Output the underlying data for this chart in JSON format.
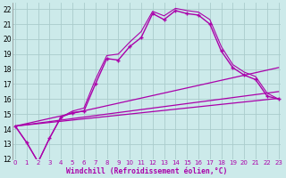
{
  "xlabel": "Windchill (Refroidissement éolien,°C)",
  "background_color": "#cceaea",
  "grid_color": "#aacccc",
  "line_color": "#aa00aa",
  "ylim": [
    12,
    22.4
  ],
  "xlim": [
    -0.2,
    23.2
  ],
  "yticks": [
    12,
    13,
    14,
    15,
    16,
    17,
    18,
    19,
    20,
    21,
    22
  ],
  "xticks": [
    0,
    1,
    2,
    3,
    4,
    5,
    6,
    7,
    8,
    9,
    10,
    11,
    12,
    13,
    14,
    15,
    16,
    17,
    18,
    19,
    20,
    21,
    22,
    23
  ],
  "main_x": [
    0,
    1,
    2,
    3,
    4,
    5,
    6,
    7,
    8,
    9,
    10,
    11,
    12,
    13,
    14,
    15,
    16,
    17,
    18,
    19,
    20,
    21,
    22,
    23
  ],
  "main_y": [
    14.2,
    13.1,
    11.8,
    13.4,
    14.8,
    15.1,
    15.2,
    17.0,
    18.7,
    18.6,
    19.5,
    20.1,
    21.7,
    21.3,
    21.9,
    21.7,
    21.6,
    21.0,
    19.2,
    18.1,
    17.6,
    17.3,
    16.2,
    16.0
  ],
  "alt_x": [
    0,
    1,
    2,
    3,
    4,
    5,
    6,
    7,
    8,
    9,
    10,
    11,
    12,
    13,
    14,
    15,
    16,
    17,
    18,
    19,
    20,
    21,
    22,
    23
  ],
  "alt_y": [
    14.2,
    13.1,
    11.8,
    13.4,
    14.8,
    15.2,
    15.4,
    17.3,
    18.9,
    19.0,
    19.8,
    20.5,
    21.85,
    21.55,
    22.05,
    21.9,
    21.8,
    21.3,
    19.5,
    18.3,
    17.8,
    17.5,
    16.4,
    16.0
  ],
  "trend1_x": [
    0,
    23
  ],
  "trend1_y": [
    14.2,
    18.1
  ],
  "trend2_x": [
    0,
    23
  ],
  "trend2_y": [
    14.2,
    16.5
  ],
  "trend3_x": [
    0,
    23
  ],
  "trend3_y": [
    14.2,
    16.05
  ]
}
